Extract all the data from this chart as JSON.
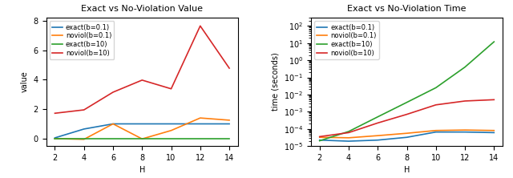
{
  "H": [
    2,
    4,
    6,
    8,
    10,
    12,
    14
  ],
  "left_title": "Exact vs No-Violation Value",
  "left_ylabel": "value",
  "left_xlabel": "H",
  "exact_b01_value": [
    0.05,
    0.65,
    1.0,
    1.0,
    1.0,
    1.0,
    1.0
  ],
  "noviol_b01_value": [
    0.0,
    -0.05,
    1.0,
    -0.02,
    0.55,
    1.4,
    1.25
  ],
  "exact_b10_value": [
    0.0,
    0.0,
    0.0,
    0.0,
    0.0,
    0.0,
    0.0
  ],
  "noviol_b10_value": [
    1.72,
    1.95,
    3.15,
    3.97,
    3.38,
    7.65,
    4.78
  ],
  "right_title": "Exact vs No-Violation Time",
  "right_ylabel": "time (seconds)",
  "right_xlabel": "H",
  "exact_b01_time": [
    2.2e-05,
    1.9e-05,
    2.2e-05,
    3.2e-05,
    6.5e-05,
    6.5e-05,
    6e-05
  ],
  "noviol_b01_time": [
    3.2e-05,
    3e-05,
    4e-05,
    5.5e-05,
    8e-05,
    8.5e-05,
    8e-05
  ],
  "exact_b10_time": [
    2e-05,
    7e-05,
    0.0005,
    0.0035,
    0.025,
    0.4,
    12.0
  ],
  "noviol_b10_time": [
    3.5e-05,
    6e-05,
    0.00022,
    0.0007,
    0.0025,
    0.0042,
    0.005
  ],
  "color_exact_b01": "#1f77b4",
  "color_noviol_b01": "#ff7f0e",
  "color_exact_b10": "#2ca02c",
  "color_noviol_b10": "#d62728",
  "legend_labels": [
    "exact(b=0.1)",
    "noviol(b=0.1)",
    "exact(b=10)",
    "noviol(b=10)"
  ],
  "title_fontsize": 8,
  "label_fontsize": 7,
  "tick_fontsize": 7,
  "legend_fontsize": 6
}
